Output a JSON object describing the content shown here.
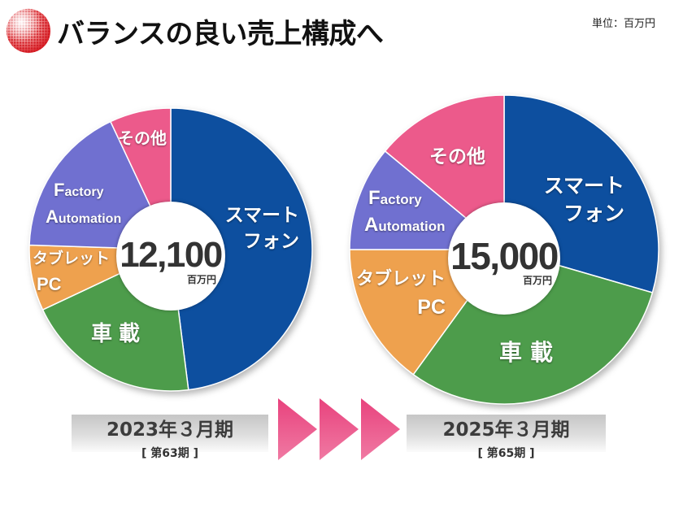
{
  "header": {
    "logo_icon": "red-halftone-sphere-icon",
    "title": "バランスの良い売上構成へ",
    "unit_note": "単位：百万円"
  },
  "transition_arrows": {
    "icon": "play-triangle-icon",
    "color_top": "#e8427d",
    "color_bottom": "#f07aa3"
  },
  "chart_data": [
    {
      "type": "pie",
      "center_value": "12,100",
      "center_unit": "百万円",
      "period": "2023年３月期",
      "term": "[ 第63期 ]",
      "slices": [
        {
          "label_lines": [
            "スマート",
            "フォン"
          ],
          "share_pct": 48,
          "color": "#0d4f9f"
        },
        {
          "label_lines": [
            "車載"
          ],
          "share_pct": 20,
          "color": "#4d9c4b"
        },
        {
          "label_lines": [
            "タブレット",
            "PC"
          ],
          "share_pct": 7.5,
          "color": "#eea14e"
        },
        {
          "label_lines": [
            "Factory",
            "Automation"
          ],
          "share_pct": 17.5,
          "color": "#7070d0"
        },
        {
          "label_lines": [
            "その他"
          ],
          "share_pct": 7,
          "color": "#ec5a8b"
        }
      ]
    },
    {
      "type": "pie",
      "center_value": "15,000",
      "center_unit": "百万円",
      "period": "2025年３月期",
      "term": "[ 第65期 ]",
      "slices": [
        {
          "label_lines": [
            "スマート",
            "フォン"
          ],
          "share_pct": 29.5,
          "color": "#0d4f9f"
        },
        {
          "label_lines": [
            "車載"
          ],
          "share_pct": 30.5,
          "color": "#4d9c4b"
        },
        {
          "label_lines": [
            "タブレット",
            "PC"
          ],
          "share_pct": 15,
          "color": "#eea14e"
        },
        {
          "label_lines": [
            "Factory",
            "Automation"
          ],
          "share_pct": 11,
          "color": "#7070d0"
        },
        {
          "label_lines": [
            "その他"
          ],
          "share_pct": 14,
          "color": "#ec5a8b"
        }
      ]
    }
  ]
}
